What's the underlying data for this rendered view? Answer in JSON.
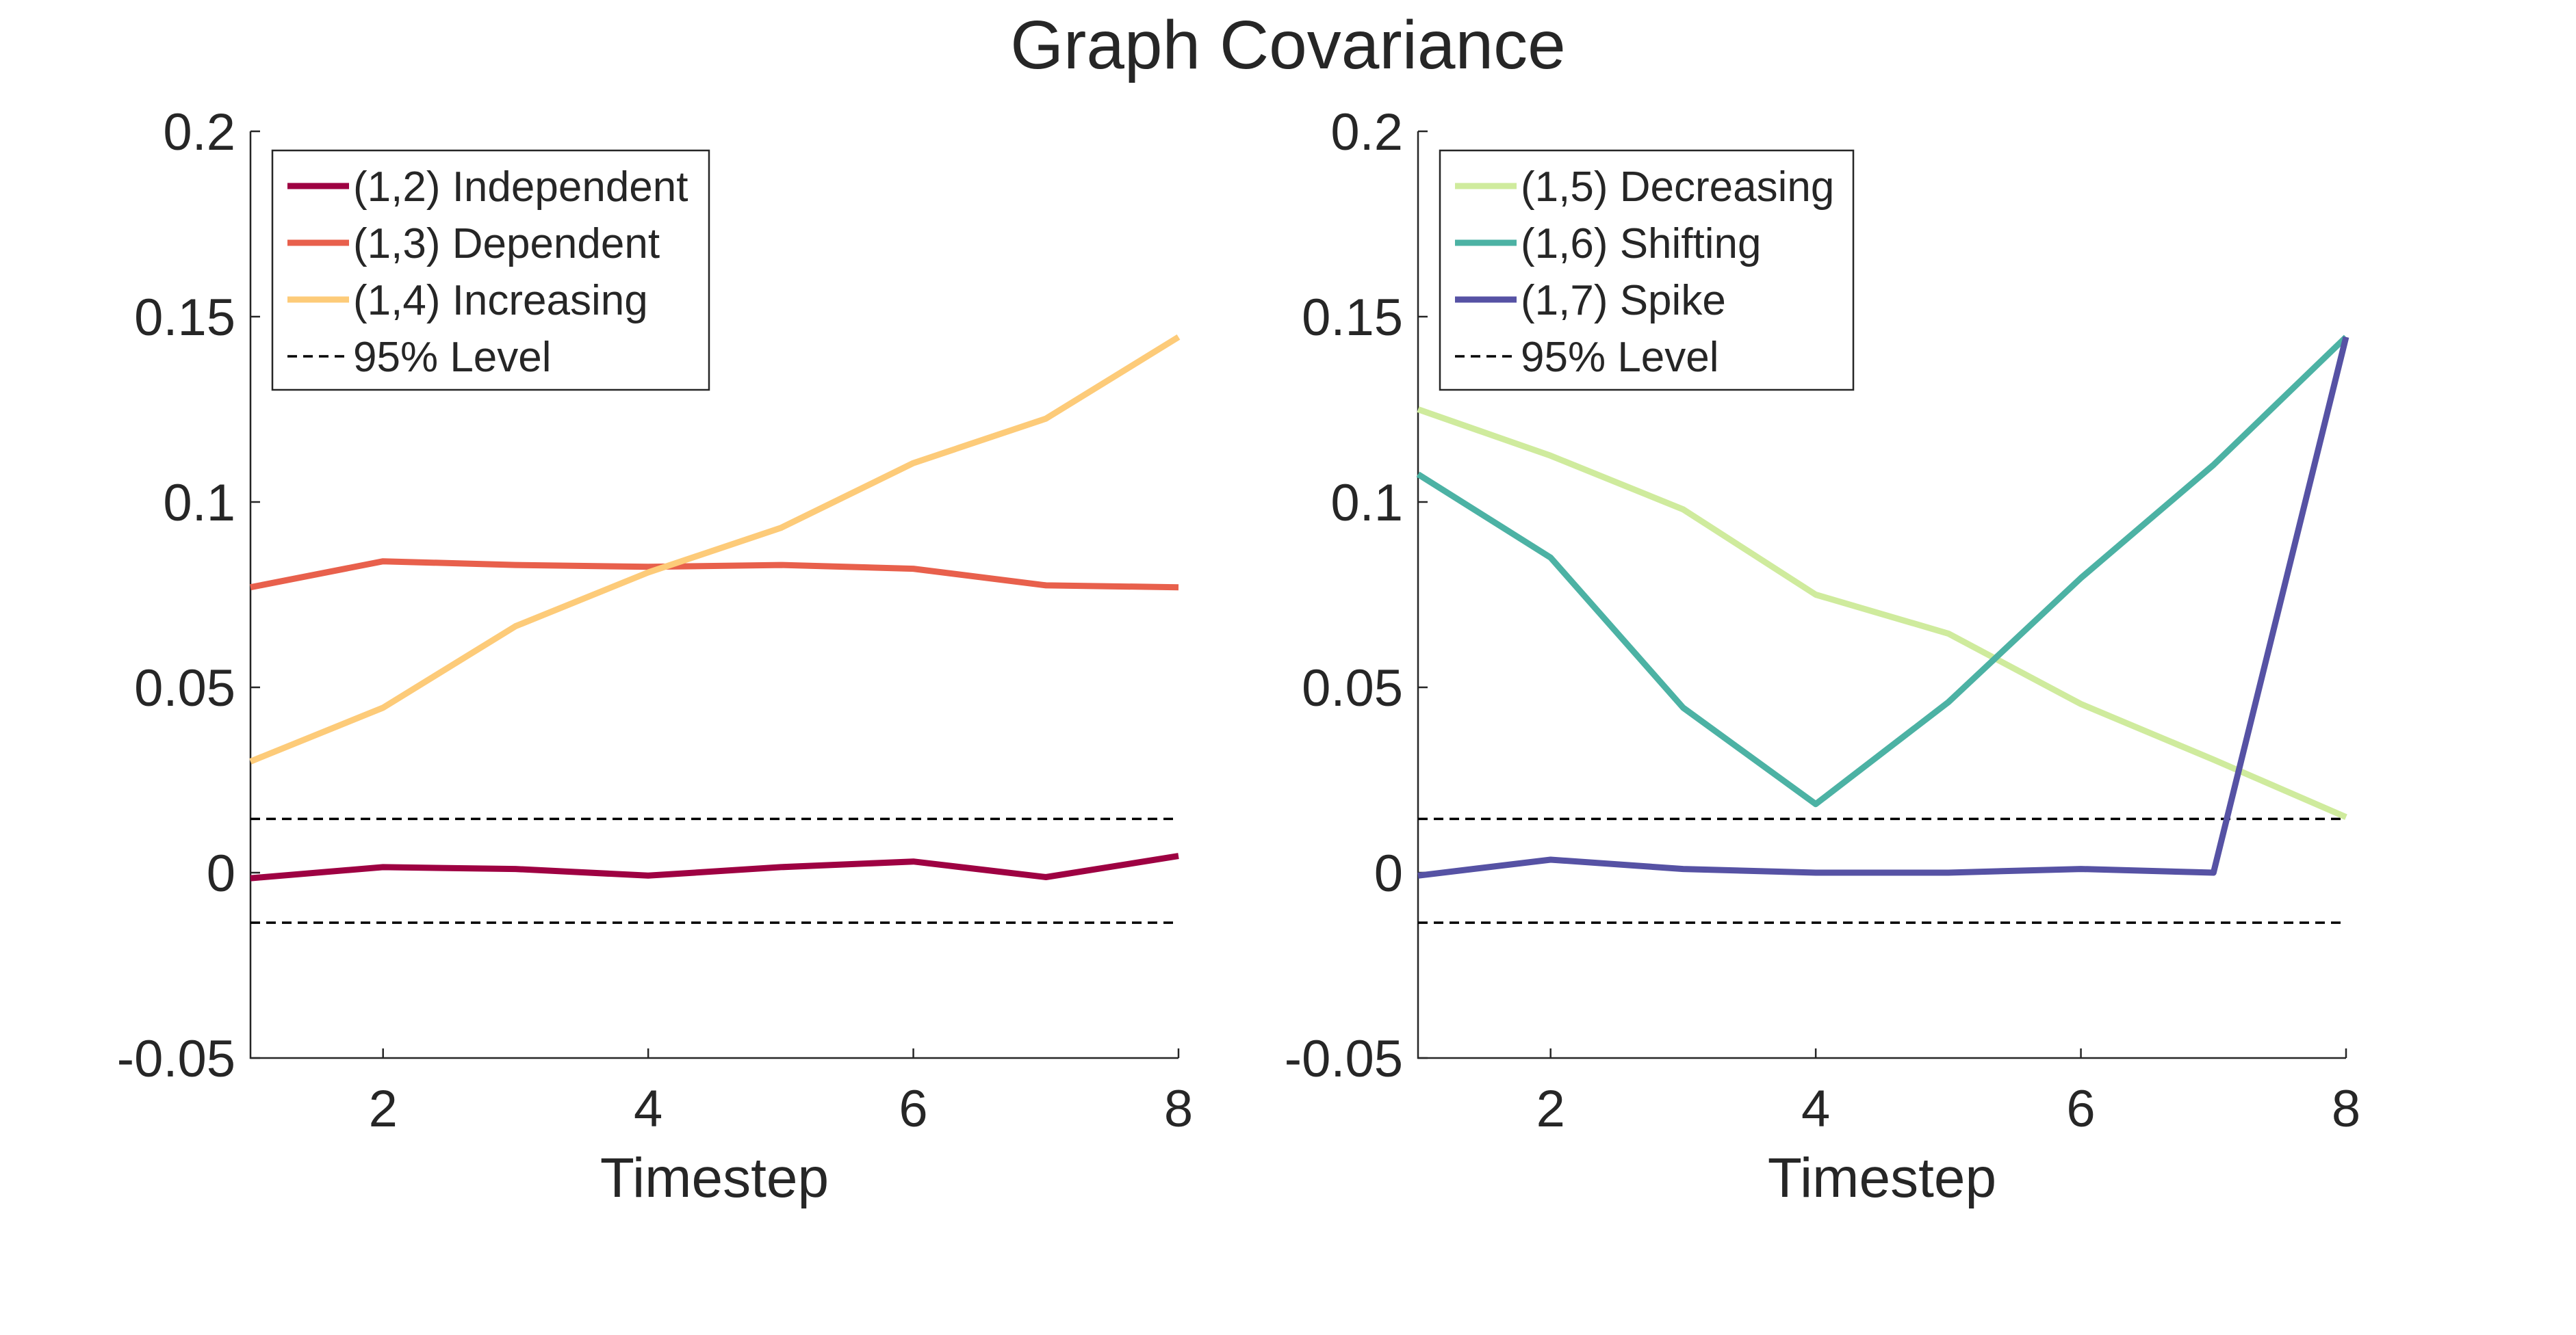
{
  "figure_title": "Graph Covariance",
  "chart_data": [
    {
      "type": "line",
      "panel": "left",
      "title": "",
      "xlabel": "Timestep",
      "ylabel": "",
      "xlim": [
        1,
        8
      ],
      "ylim": [
        -0.05,
        0.2
      ],
      "xticks": [
        2,
        4,
        6,
        8
      ],
      "xtick_labels": [
        "2",
        "4",
        "6",
        "8"
      ],
      "yticks": [
        -0.05,
        0,
        0.05,
        0.1,
        0.15,
        0.2
      ],
      "ytick_labels": [
        "-0.05",
        "0",
        "0.05",
        "0.1",
        "0.15",
        "0.2"
      ],
      "legend_position": "top-left",
      "x": [
        1,
        2,
        3,
        4,
        5,
        6,
        7,
        8
      ],
      "series": [
        {
          "name": "(1,2) Independent",
          "color": "#9e0142",
          "values": [
            -0.0015,
            0.0015,
            0.001,
            -0.0008,
            0.0015,
            0.003,
            -0.0012,
            0.0045
          ]
        },
        {
          "name": "(1,3) Dependent",
          "color": "#e8604c",
          "values": [
            0.077,
            0.084,
            0.083,
            0.0825,
            0.083,
            0.082,
            0.0775,
            0.077
          ]
        },
        {
          "name": "(1,4) Increasing",
          "color": "#fdcb79",
          "values": [
            0.03,
            0.0445,
            0.0665,
            0.081,
            0.093,
            0.1105,
            0.1225,
            0.1445
          ]
        }
      ],
      "reference": {
        "name": "95% Level",
        "color": "#000000",
        "values": [
          0.0145,
          -0.0135
        ]
      }
    },
    {
      "type": "line",
      "panel": "right",
      "title": "",
      "xlabel": "Timestep",
      "ylabel": "",
      "xlim": [
        1,
        8
      ],
      "ylim": [
        -0.05,
        0.2
      ],
      "xticks": [
        2,
        4,
        6,
        8
      ],
      "xtick_labels": [
        "2",
        "4",
        "6",
        "8"
      ],
      "yticks": [
        -0.05,
        0,
        0.05,
        0.1,
        0.15,
        0.2
      ],
      "ytick_labels": [
        "-0.05",
        "0",
        "0.05",
        "0.1",
        "0.15",
        "0.2"
      ],
      "legend_position": "top-left",
      "x": [
        1,
        2,
        3,
        4,
        5,
        6,
        7,
        8
      ],
      "series": [
        {
          "name": "(1,5) Decreasing",
          "color": "#cfeb9d",
          "values": [
            0.125,
            0.1125,
            0.098,
            0.075,
            0.0645,
            0.0455,
            0.0305,
            0.015
          ]
        },
        {
          "name": "(1,6) Shifting",
          "color": "#4cb2a4",
          "values": [
            0.1075,
            0.085,
            0.0445,
            0.0185,
            0.046,
            0.0795,
            0.11,
            0.1445
          ]
        },
        {
          "name": "(1,7) Spike",
          "color": "#5652a4",
          "values": [
            -0.0008,
            0.0035,
            0.001,
            0.0,
            0.0,
            0.001,
            0.0,
            0.1445
          ]
        }
      ],
      "reference": {
        "name": "95% Level",
        "color": "#000000",
        "values": [
          0.0145,
          -0.0135
        ]
      }
    }
  ]
}
